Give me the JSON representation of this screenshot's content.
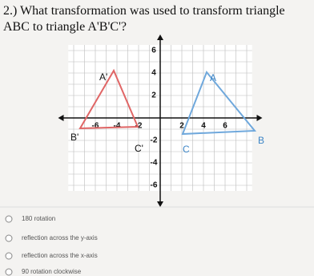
{
  "question": {
    "line1": "2.) What transformation was used to transform triangle",
    "line2": "ABC to triangle A'B'C'?"
  },
  "graph": {
    "xlabels": [
      "-6",
      "-4",
      "-2",
      "2",
      "4",
      "6"
    ],
    "ylabels": [
      "6",
      "4",
      "2",
      "-2",
      "-4",
      "-6"
    ],
    "points": {
      "a_prime": "A'",
      "b_prime": "B'",
      "c_prime": "C'",
      "a": "A",
      "b": "B",
      "c": "C"
    }
  },
  "options": [
    "180 rotation",
    "reflection across the y-axis",
    "reflection across the x-axis",
    "90 rotation clockwise"
  ]
}
